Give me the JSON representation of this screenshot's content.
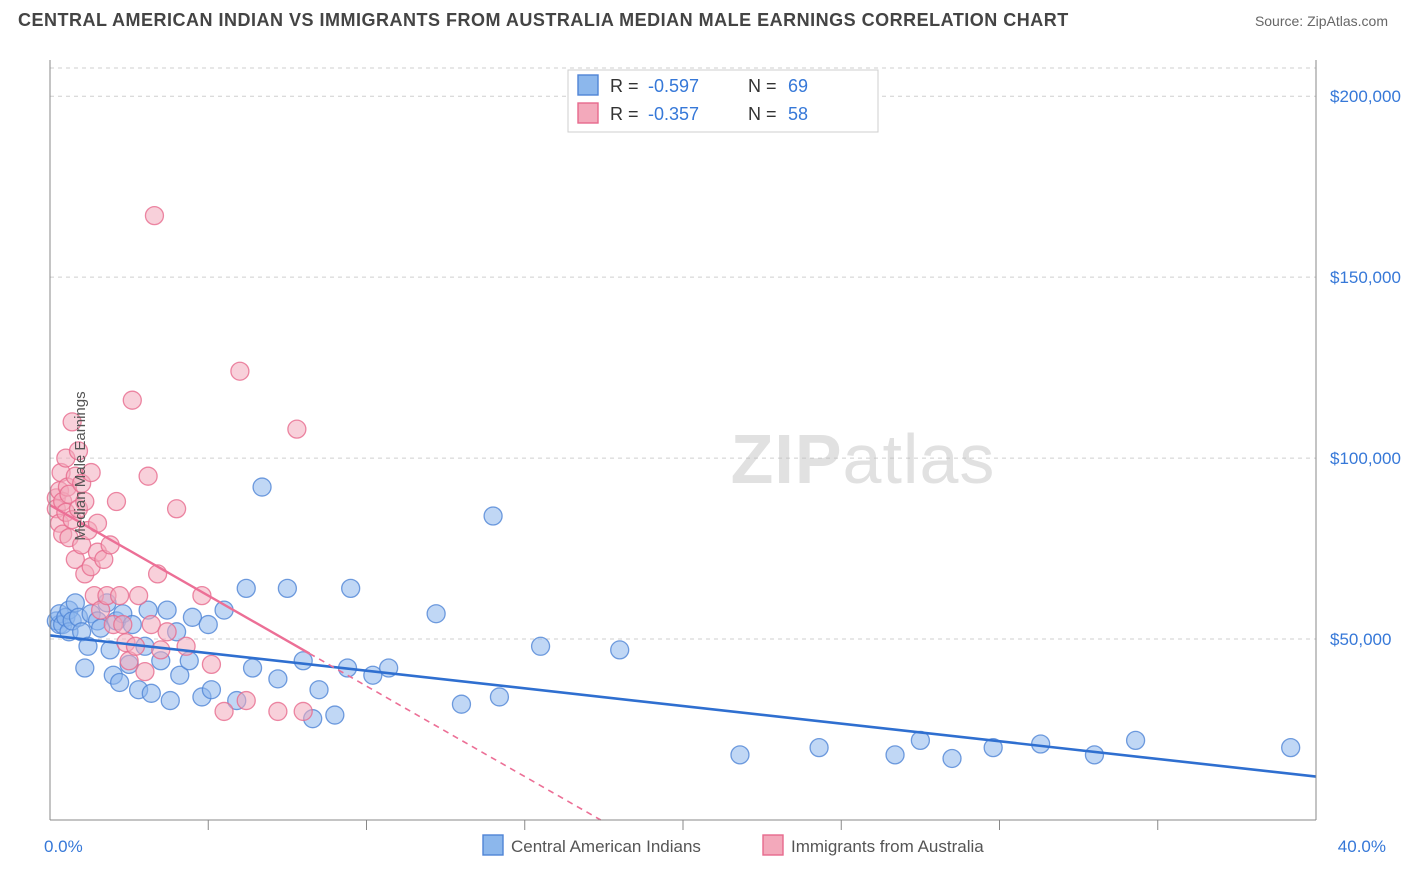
{
  "title": "CENTRAL AMERICAN INDIAN VS IMMIGRANTS FROM AUSTRALIA MEDIAN MALE EARNINGS CORRELATION CHART",
  "source_label": "Source:",
  "source_site": "ZipAtlas.com",
  "ylabel": "Median Male Earnings",
  "watermark_1": "ZIP",
  "watermark_2": "atlas",
  "chart": {
    "type": "scatter",
    "xlim": [
      0,
      40
    ],
    "ylim": [
      0,
      210000
    ],
    "x_unit": "percent",
    "y_unit": "usd",
    "x_end_labels": [
      "0.0%",
      "40.0%"
    ],
    "y_ticks": [
      50000,
      100000,
      150000,
      200000
    ],
    "y_tick_labels": [
      "$50,000",
      "$100,000",
      "$150,000",
      "$200,000"
    ],
    "x_ticks": [
      5,
      10,
      15,
      20,
      25,
      30,
      35
    ],
    "background_color": "#ffffff",
    "grid_color": "#cfcfcf",
    "axis_color": "#888888",
    "marker_radius": 9,
    "marker_opacity": 0.55,
    "marker_stroke_opacity": 0.8,
    "series": [
      {
        "id": "central_american_indians",
        "label": "Central American Indians",
        "color": "#8cb7ec",
        "stroke": "#4f84d6",
        "R": "-0.597",
        "N": "69",
        "trend": {
          "x1": 0,
          "y1": 51000,
          "x2": 40,
          "y2": 12000,
          "color": "#2f6fd0",
          "width": 2.6,
          "dash": ""
        },
        "points": [
          [
            0.2,
            55000
          ],
          [
            0.3,
            54000
          ],
          [
            0.3,
            57000
          ],
          [
            0.4,
            54000
          ],
          [
            0.5,
            56000
          ],
          [
            0.6,
            52000
          ],
          [
            0.6,
            58000
          ],
          [
            0.7,
            55000
          ],
          [
            0.8,
            60000
          ],
          [
            0.9,
            56000
          ],
          [
            1.0,
            52000
          ],
          [
            1.1,
            42000
          ],
          [
            1.2,
            48000
          ],
          [
            1.3,
            57000
          ],
          [
            1.5,
            55000
          ],
          [
            1.6,
            53000
          ],
          [
            1.8,
            60000
          ],
          [
            1.9,
            47000
          ],
          [
            2.0,
            40000
          ],
          [
            2.1,
            55000
          ],
          [
            2.2,
            38000
          ],
          [
            2.3,
            57000
          ],
          [
            2.5,
            43000
          ],
          [
            2.6,
            54000
          ],
          [
            2.8,
            36000
          ],
          [
            3.0,
            48000
          ],
          [
            3.1,
            58000
          ],
          [
            3.2,
            35000
          ],
          [
            3.5,
            44000
          ],
          [
            3.7,
            58000
          ],
          [
            3.8,
            33000
          ],
          [
            4.0,
            52000
          ],
          [
            4.1,
            40000
          ],
          [
            4.4,
            44000
          ],
          [
            4.5,
            56000
          ],
          [
            4.8,
            34000
          ],
          [
            5.0,
            54000
          ],
          [
            5.1,
            36000
          ],
          [
            5.5,
            58000
          ],
          [
            5.9,
            33000
          ],
          [
            6.2,
            64000
          ],
          [
            6.4,
            42000
          ],
          [
            6.7,
            92000
          ],
          [
            7.2,
            39000
          ],
          [
            7.5,
            64000
          ],
          [
            8.0,
            44000
          ],
          [
            8.3,
            28000
          ],
          [
            8.5,
            36000
          ],
          [
            9.0,
            29000
          ],
          [
            9.4,
            42000
          ],
          [
            9.5,
            64000
          ],
          [
            10.2,
            40000
          ],
          [
            10.7,
            42000
          ],
          [
            12.2,
            57000
          ],
          [
            13.0,
            32000
          ],
          [
            14.0,
            84000
          ],
          [
            14.2,
            34000
          ],
          [
            15.5,
            48000
          ],
          [
            18.0,
            47000
          ],
          [
            21.8,
            18000
          ],
          [
            24.3,
            20000
          ],
          [
            26.7,
            18000
          ],
          [
            27.5,
            22000
          ],
          [
            28.5,
            17000
          ],
          [
            29.8,
            20000
          ],
          [
            31.3,
            21000
          ],
          [
            33.0,
            18000
          ],
          [
            34.3,
            22000
          ],
          [
            39.2,
            20000
          ]
        ]
      },
      {
        "id": "immigrants_from_australia",
        "label": "Immigrants from Australia",
        "color": "#f3a9bb",
        "stroke": "#e76a8d",
        "R": "-0.357",
        "N": "58",
        "trend_solid": {
          "x1": 0,
          "y1": 87000,
          "x2": 8.2,
          "y2": 46000,
          "color": "#ec6f96",
          "width": 2.4
        },
        "trend_dash": {
          "x1": 8.2,
          "y1": 46000,
          "x2": 17.4,
          "y2": 0,
          "color": "#ec6f96",
          "width": 1.6,
          "dash": "6 5"
        },
        "points": [
          [
            0.2,
            89000
          ],
          [
            0.2,
            86000
          ],
          [
            0.3,
            91000
          ],
          [
            0.3,
            82000
          ],
          [
            0.35,
            96000
          ],
          [
            0.4,
            88000
          ],
          [
            0.4,
            79000
          ],
          [
            0.5,
            100000
          ],
          [
            0.5,
            85000
          ],
          [
            0.55,
            92000
          ],
          [
            0.6,
            78000
          ],
          [
            0.6,
            90000
          ],
          [
            0.7,
            110000
          ],
          [
            0.7,
            83000
          ],
          [
            0.8,
            95000
          ],
          [
            0.8,
            72000
          ],
          [
            0.9,
            102000
          ],
          [
            0.9,
            86000
          ],
          [
            1.0,
            76000
          ],
          [
            1.0,
            93000
          ],
          [
            1.1,
            68000
          ],
          [
            1.1,
            88000
          ],
          [
            1.2,
            80000
          ],
          [
            1.3,
            70000
          ],
          [
            1.3,
            96000
          ],
          [
            1.4,
            62000
          ],
          [
            1.5,
            82000
          ],
          [
            1.5,
            74000
          ],
          [
            1.6,
            58000
          ],
          [
            1.7,
            72000
          ],
          [
            1.8,
            62000
          ],
          [
            1.9,
            76000
          ],
          [
            2.0,
            54000
          ],
          [
            2.1,
            88000
          ],
          [
            2.2,
            62000
          ],
          [
            2.3,
            54000
          ],
          [
            2.4,
            49000
          ],
          [
            2.5,
            44000
          ],
          [
            2.6,
            116000
          ],
          [
            2.7,
            48000
          ],
          [
            2.8,
            62000
          ],
          [
            3.0,
            41000
          ],
          [
            3.1,
            95000
          ],
          [
            3.2,
            54000
          ],
          [
            3.3,
            167000
          ],
          [
            3.4,
            68000
          ],
          [
            3.5,
            47000
          ],
          [
            3.7,
            52000
          ],
          [
            4.0,
            86000
          ],
          [
            4.3,
            48000
          ],
          [
            4.8,
            62000
          ],
          [
            5.1,
            43000
          ],
          [
            5.5,
            30000
          ],
          [
            6.0,
            124000
          ],
          [
            6.2,
            33000
          ],
          [
            7.2,
            30000
          ],
          [
            7.8,
            108000
          ],
          [
            8.0,
            30000
          ]
        ]
      }
    ],
    "stats_box": {
      "rows": [
        {
          "swatch_color": "#8cb7ec",
          "swatch_stroke": "#4f84d6",
          "R_label": "R =",
          "R": "-0.597",
          "N_label": "N =",
          "N": "69"
        },
        {
          "swatch_color": "#f3a9bb",
          "swatch_stroke": "#e76a8d",
          "R_label": "R =",
          "R": "-0.357",
          "N_label": "N =",
          "N": "58"
        }
      ]
    }
  }
}
